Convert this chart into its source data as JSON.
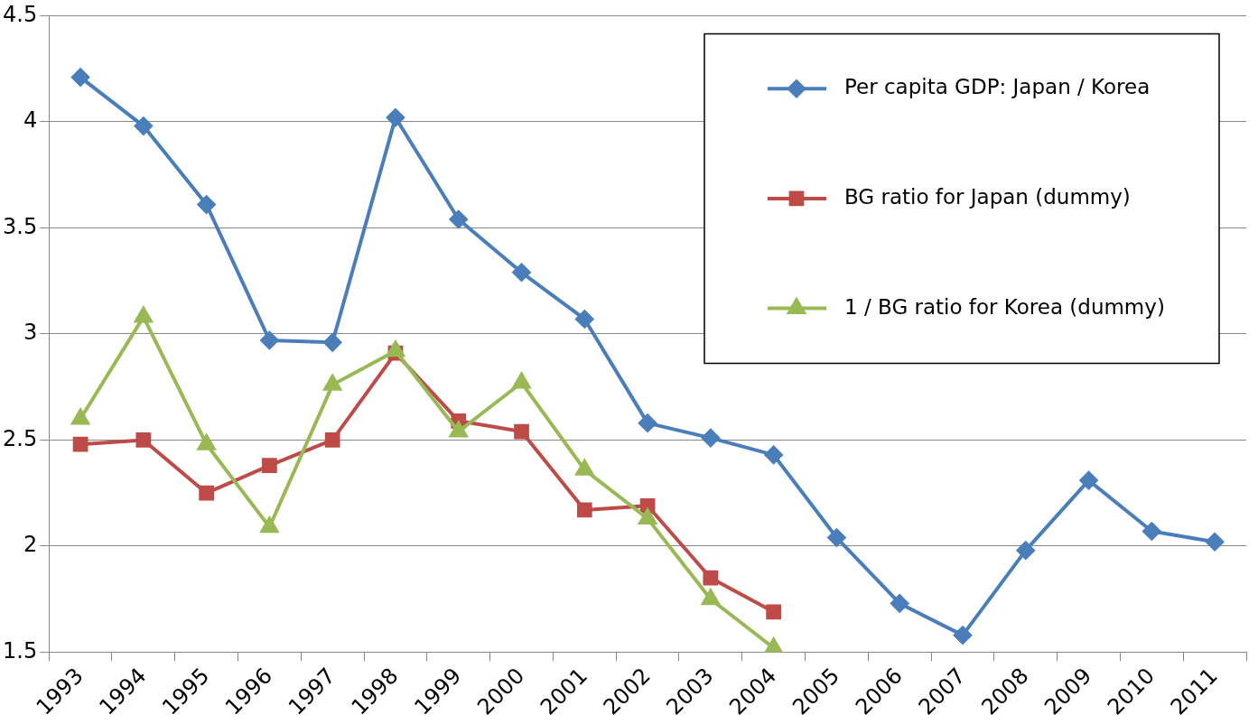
{
  "chart_data": {
    "type": "line",
    "categories": [
      "1993",
      "1994",
      "1995",
      "1996",
      "1997",
      "1998",
      "1999",
      "2000",
      "2001",
      "2002",
      "2003",
      "2004",
      "2005",
      "2006",
      "2007",
      "2008",
      "2009",
      "2010",
      "2011"
    ],
    "series": [
      {
        "name": "Per capita GDP: Japan / Korea",
        "color": "#4a7ebb",
        "marker": "diamond",
        "values": [
          4.21,
          3.98,
          3.61,
          2.97,
          2.96,
          4.02,
          3.54,
          3.29,
          3.07,
          2.58,
          2.51,
          2.43,
          2.04,
          1.73,
          1.58,
          1.98,
          2.31,
          2.07,
          2.02
        ]
      },
      {
        "name": "BG ratio for Japan (dummy)",
        "color": "#be4b48",
        "marker": "square",
        "values": [
          2.48,
          2.5,
          2.25,
          2.38,
          2.5,
          2.91,
          2.59,
          2.54,
          2.17,
          2.19,
          1.85,
          1.69,
          null,
          null,
          null,
          null,
          null,
          null,
          null
        ]
      },
      {
        "name": "1 / BG ratio for Korea (dummy)",
        "color": "#98b954",
        "marker": "triangle",
        "values": [
          2.6,
          3.08,
          2.48,
          2.09,
          2.76,
          2.92,
          2.54,
          2.77,
          2.36,
          2.13,
          1.75,
          1.52,
          null,
          null,
          null,
          null,
          null,
          null,
          null
        ]
      }
    ],
    "ylim": [
      1.5,
      4.5
    ],
    "yticks": [
      1.5,
      2,
      2.5,
      3,
      3.5,
      4,
      4.5
    ],
    "grid": "y",
    "legend": "top right",
    "line_style": "solid"
  }
}
